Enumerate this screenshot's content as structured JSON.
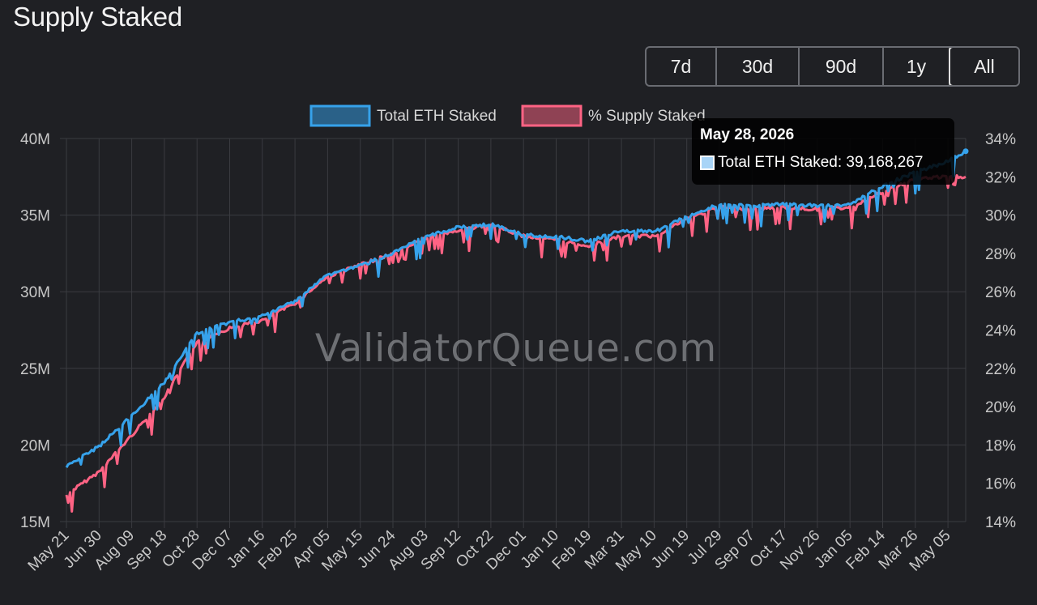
{
  "page": {
    "title": "Supply Staked"
  },
  "range_buttons": [
    {
      "label": "7d",
      "active": false
    },
    {
      "label": "30d",
      "active": false
    },
    {
      "label": "90d",
      "active": false
    },
    {
      "label": "1y",
      "active": false
    },
    {
      "label": "All",
      "active": true
    }
  ],
  "watermark": "ValidatorQueue.com",
  "tooltip": {
    "title": "May 28, 2026",
    "series_label": "Total ETH Staked: 39,168,267"
  },
  "colors": {
    "background": "#1f2024",
    "grid": "#3a3b40",
    "axis_text": "#c8c8c8",
    "total_staked": "#36a2eb",
    "pct_staked": "#ff6384"
  },
  "chart_data": {
    "type": "line",
    "title": "Supply Staked",
    "legend": {
      "position": "top",
      "items": [
        "Total ETH Staked",
        "% Supply Staked"
      ]
    },
    "grid": true,
    "x_tick_labels": [
      "May 21",
      "Jun 30",
      "Aug 09",
      "Sep 18",
      "Oct 28",
      "Dec 07",
      "Jan 16",
      "Feb 25",
      "Apr 05",
      "May 15",
      "Jun 24",
      "Aug 03",
      "Sep 12",
      "Oct 22",
      "Dec 01",
      "Jan 10",
      "Feb 19",
      "Mar 31",
      "May 10",
      "Jun 19",
      "Jul 29",
      "Sep 07",
      "Oct 17",
      "Nov 26",
      "Jan 05",
      "Feb 14",
      "Mar 26",
      "May 05"
    ],
    "y_left": {
      "label": "",
      "ylim": [
        15000000,
        40000000
      ],
      "tick_labels": [
        "15M",
        "20M",
        "25M",
        "30M",
        "35M",
        "40M"
      ]
    },
    "y_right": {
      "label": "",
      "ylim": [
        14,
        34
      ],
      "tick_labels": [
        "14%",
        "16%",
        "18%",
        "20%",
        "22%",
        "24%",
        "26%",
        "28%",
        "30%",
        "32%",
        "34%"
      ]
    },
    "x": [
      "May 21",
      "Jun 30",
      "Aug 09",
      "Sep 18",
      "Oct 28",
      "Dec 07",
      "Jan 16",
      "Feb 25",
      "Apr 05",
      "May 15",
      "Jun 24",
      "Aug 03",
      "Sep 12",
      "Oct 22",
      "Dec 01",
      "Jan 10",
      "Feb 19",
      "Mar 31",
      "May 10",
      "Jun 19",
      "Jul 29",
      "Sep 07",
      "Oct 17",
      "Nov 26",
      "Jan 05",
      "Feb 14",
      "Mar 26",
      "May 05",
      "May 28, 2026"
    ],
    "series": [
      {
        "name": "Total ETH Staked",
        "axis": "left",
        "values": [
          18600000,
          19900000,
          21900000,
          24100000,
          27300000,
          28000000,
          28400000,
          29400000,
          31100000,
          31700000,
          32500000,
          33600000,
          34200000,
          34400000,
          33700000,
          33600000,
          33300000,
          34000000,
          33900000,
          34900000,
          35700000,
          35600000,
          35700000,
          35600000,
          35700000,
          36900000,
          37800000,
          38500000,
          39168267
        ]
      },
      {
        "name": "% Supply Staked",
        "axis": "right",
        "values": [
          15.4,
          16.6,
          18.5,
          20.5,
          23.4,
          24.1,
          24.5,
          25.4,
          26.8,
          27.4,
          28.0,
          28.8,
          29.2,
          29.5,
          28.9,
          28.7,
          28.4,
          28.9,
          28.9,
          29.8,
          30.4,
          30.3,
          30.4,
          30.3,
          30.4,
          31.2,
          31.9,
          32.0,
          32.0
        ]
      }
    ]
  }
}
